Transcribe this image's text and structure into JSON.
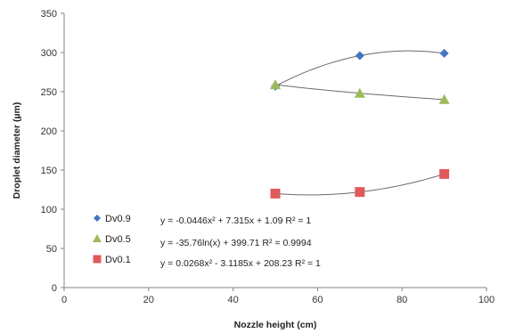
{
  "chart_data": {
    "type": "scatter",
    "xlabel": "Nozzle height (cm)",
    "ylabel": "Droplet diameter (µm)",
    "xlim": [
      0,
      100
    ],
    "ylim": [
      0,
      350
    ],
    "xticks": [
      0,
      20,
      40,
      60,
      80,
      100
    ],
    "yticks": [
      0,
      50,
      100,
      150,
      200,
      250,
      300,
      350
    ],
    "grid": false,
    "legend_position": "bottom-left",
    "series": [
      {
        "name": "Dv0.9",
        "marker": "diamond",
        "color": "#4472c4",
        "x": [
          50,
          70,
          90
        ],
        "y": [
          257,
          296,
          299
        ],
        "trendline": "poly2",
        "equation": "y = -0.0446x² + 7.315x + 1.09  R² = 1"
      },
      {
        "name": "Dv0.5",
        "marker": "triangle",
        "color": "#9bbb59",
        "x": [
          50,
          70,
          90
        ],
        "y": [
          259,
          248,
          240
        ],
        "trendline": "log",
        "equation": "y = -35.76ln(x) + 399.71  R² = 0.9994"
      },
      {
        "name": "Dv0.1",
        "marker": "square",
        "color": "#e05a5a",
        "x": [
          50,
          70,
          90
        ],
        "y": [
          120,
          122,
          145
        ],
        "trendline": "poly2",
        "equation": "y = 0.0268x² - 3.1185x + 208.23  R² = 1"
      }
    ]
  }
}
